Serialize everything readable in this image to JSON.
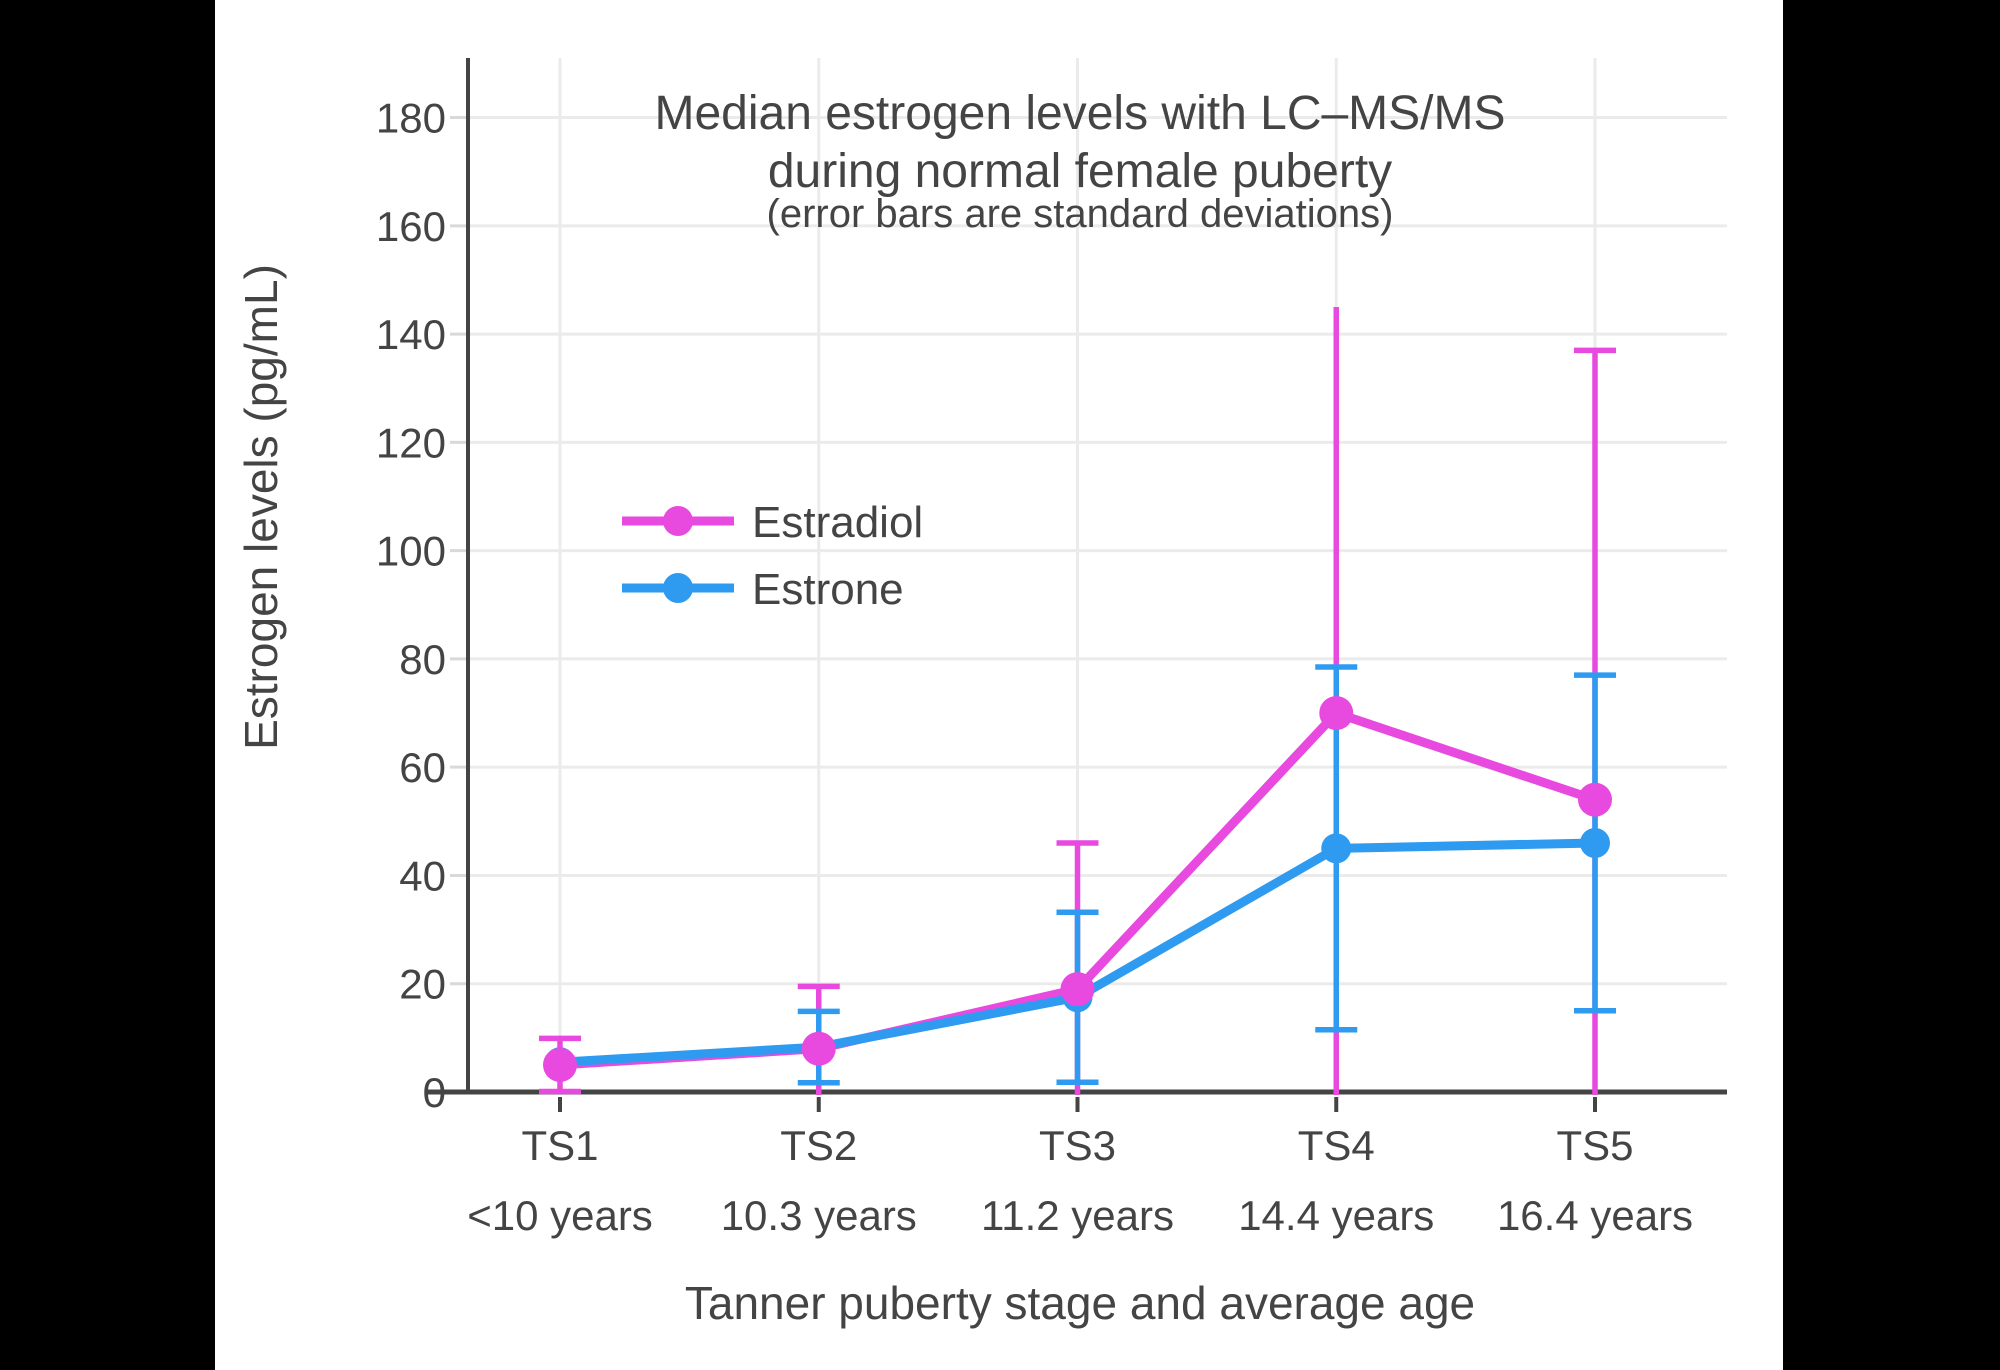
{
  "colors": {
    "background": "#000000",
    "panel": "#ffffff",
    "text": "#444444",
    "grid": "#ebebeb",
    "axis": "#444444",
    "tick_light": "#d9d9d9"
  },
  "chart_data": {
    "type": "line",
    "title_line1": "Median estrogen levels with LC–MS/MS",
    "title_line2": "during normal female puberty",
    "subtitle": "(error bars are standard deviations)",
    "xlabel": "Tanner puberty stage and average age",
    "ylabel": "Estrogen levels (pg/mL)",
    "categories": [
      "TS1",
      "TS2",
      "TS3",
      "TS4",
      "TS5"
    ],
    "category_sublabels": [
      "<10 years",
      "10.3 years",
      "11.2 years",
      "14.4 years",
      "16.4 years"
    ],
    "y_ticks": [
      0,
      20,
      40,
      60,
      80,
      100,
      120,
      140,
      160,
      180
    ],
    "ylim": [
      0,
      191
    ],
    "grid": true,
    "legend_position": "inside upper-left",
    "error_bar_note": "error bars are standard deviations; bars that would extend below 0 are clipped at the x-axis",
    "series": [
      {
        "name": "Estradiol",
        "color": "#e84ae0",
        "values": [
          5,
          8,
          19,
          70,
          54
        ],
        "sd": [
          4.9,
          11.5,
          27,
          75,
          83
        ],
        "top_cap": [
          true,
          true,
          true,
          false,
          true
        ]
      },
      {
        "name": "Estrone",
        "color": "#2e9bf0",
        "values": [
          5.5,
          8.3,
          17.5,
          45,
          46
        ],
        "sd": [
          null,
          6.6,
          15.7,
          33.5,
          31
        ],
        "top_cap": [
          false,
          true,
          true,
          true,
          true
        ]
      }
    ]
  }
}
